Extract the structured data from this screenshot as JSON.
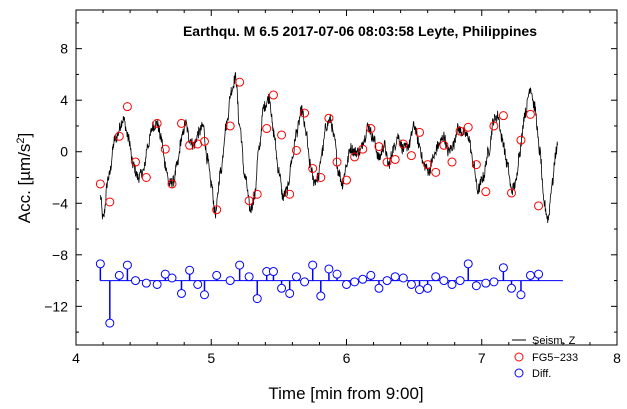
{
  "chart_data": {
    "type": "line",
    "title": "Earthqu. M 6.5 2017-07-06 08:03:58 Leyte, Philippines",
    "xlabel": "Time [min from 9:00]",
    "ylabel_main": "Acc. [µm/s",
    "ylabel_sup": "2",
    "ylabel_tail": "]",
    "xlim": [
      4,
      8
    ],
    "ylim": [
      -15,
      11
    ],
    "x_ticks": [
      "4",
      "5",
      "6",
      "7",
      "8"
    ],
    "y_ticks": [
      "8",
      "4",
      "0",
      "−4",
      "−8",
      "−12"
    ],
    "y_tick_values": [
      8,
      4,
      0,
      -4,
      -8,
      -12
    ],
    "x_tick_values": [
      4,
      5,
      6,
      7,
      8
    ],
    "grid": false,
    "legend_position": "bottom-right",
    "legend": [
      "Seism. Z",
      "FG5−233",
      "Diff."
    ],
    "colors": {
      "seism": "#000000",
      "fg5": "#ff0000",
      "diff": "#0000ff",
      "baseline": "#0000ff"
    },
    "diff_baseline": -10,
    "seism_keypoints": [
      [
        4.18,
        -3.5
      ],
      [
        4.2,
        -5.2
      ],
      [
        4.24,
        -2.0
      ],
      [
        4.29,
        1.0
      ],
      [
        4.35,
        2.5
      ],
      [
        4.39,
        1.0
      ],
      [
        4.42,
        -1.0
      ],
      [
        4.46,
        -2.0
      ],
      [
        4.5,
        -1.5
      ],
      [
        4.53,
        0.5
      ],
      [
        4.57,
        2.0
      ],
      [
        4.6,
        2.2
      ],
      [
        4.63,
        1.0
      ],
      [
        4.66,
        -1.0
      ],
      [
        4.69,
        -2.5
      ],
      [
        4.72,
        -2.3
      ],
      [
        4.75,
        -1.0
      ],
      [
        4.78,
        1.0
      ],
      [
        4.81,
        2.2
      ],
      [
        4.84,
        1.0
      ],
      [
        4.87,
        0.5
      ],
      [
        4.91,
        1.5
      ],
      [
        4.94,
        2.0
      ],
      [
        4.97,
        -0.5
      ],
      [
        5.0,
        -2.5
      ],
      [
        5.03,
        -4.8
      ],
      [
        5.07,
        -1.5
      ],
      [
        5.11,
        2.0
      ],
      [
        5.15,
        4.8
      ],
      [
        5.18,
        5.8
      ],
      [
        5.21,
        2.0
      ],
      [
        5.25,
        -2.0
      ],
      [
        5.29,
        -4.5
      ],
      [
        5.32,
        -3.5
      ],
      [
        5.35,
        0.0
      ],
      [
        5.39,
        3.5
      ],
      [
        5.43,
        4.2
      ],
      [
        5.46,
        1.5
      ],
      [
        5.5,
        -1.5
      ],
      [
        5.53,
        -3.5
      ],
      [
        5.56,
        -3.0
      ],
      [
        5.6,
        -0.5
      ],
      [
        5.63,
        1.5
      ],
      [
        5.67,
        3.2
      ],
      [
        5.7,
        1.5
      ],
      [
        5.73,
        -1.0
      ],
      [
        5.76,
        -2.3
      ],
      [
        5.79,
        -2.0
      ],
      [
        5.82,
        0.0
      ],
      [
        5.85,
        2.0
      ],
      [
        5.88,
        2.5
      ],
      [
        5.91,
        1.0
      ],
      [
        5.94,
        -1.5
      ],
      [
        5.97,
        -2.5
      ],
      [
        6.0,
        -1.0
      ],
      [
        6.03,
        0.3
      ],
      [
        6.06,
        0.0
      ],
      [
        6.1,
        0.0
      ],
      [
        6.13,
        1.0
      ],
      [
        6.16,
        2.0
      ],
      [
        6.2,
        1.0
      ],
      [
        6.24,
        -0.5
      ],
      [
        6.28,
        0.5
      ],
      [
        6.31,
        -1.0
      ],
      [
        6.35,
        0.3
      ],
      [
        6.38,
        1.2
      ],
      [
        6.42,
        0.2
      ],
      [
        6.46,
        0.5
      ],
      [
        6.5,
        2.0
      ],
      [
        6.54,
        0.5
      ],
      [
        6.57,
        -1.0
      ],
      [
        6.61,
        -1.5
      ],
      [
        6.64,
        -0.5
      ],
      [
        6.68,
        0.5
      ],
      [
        6.72,
        1.2
      ],
      [
        6.75,
        0.0
      ],
      [
        6.79,
        0.5
      ],
      [
        6.82,
        1.8
      ],
      [
        6.86,
        1.5
      ],
      [
        6.9,
        1.2
      ],
      [
        6.94,
        -1.0
      ],
      [
        6.97,
        -3.0
      ],
      [
        7.01,
        -2.0
      ],
      [
        7.05,
        0.0
      ],
      [
        7.09,
        2.5
      ],
      [
        7.12,
        2.8
      ],
      [
        7.15,
        1.0
      ],
      [
        7.19,
        -1.0
      ],
      [
        7.22,
        -3.0
      ],
      [
        7.25,
        -2.5
      ],
      [
        7.28,
        0.0
      ],
      [
        7.32,
        3.0
      ],
      [
        7.36,
        5.0
      ],
      [
        7.39,
        3.5
      ],
      [
        7.43,
        0.0
      ],
      [
        7.46,
        -4.0
      ],
      [
        7.49,
        -5.2
      ],
      [
        7.52,
        -2.5
      ],
      [
        7.55,
        0.0
      ],
      [
        7.56,
        0.5
      ]
    ],
    "fg5_points": [
      [
        4.18,
        -2.5
      ],
      [
        4.25,
        -3.9
      ],
      [
        4.32,
        1.2
      ],
      [
        4.38,
        3.5
      ],
      [
        4.44,
        -0.8
      ],
      [
        4.52,
        -2.0
      ],
      [
        4.6,
        2.2
      ],
      [
        4.66,
        0.2
      ],
      [
        4.71,
        -2.5
      ],
      [
        4.78,
        2.2
      ],
      [
        4.84,
        0.5
      ],
      [
        4.9,
        0.6
      ],
      [
        4.95,
        0.8
      ],
      [
        5.04,
        -4.5
      ],
      [
        5.14,
        2.0
      ],
      [
        5.21,
        5.4
      ],
      [
        5.28,
        -3.8
      ],
      [
        5.34,
        -3.3
      ],
      [
        5.41,
        1.8
      ],
      [
        5.46,
        4.4
      ],
      [
        5.52,
        1.3
      ],
      [
        5.58,
        -3.3
      ],
      [
        5.63,
        0.1
      ],
      [
        5.69,
        3.0
      ],
      [
        5.75,
        -1.3
      ],
      [
        5.81,
        -2.0
      ],
      [
        5.87,
        2.6
      ],
      [
        5.93,
        -0.8
      ],
      [
        6.0,
        -2.2
      ],
      [
        6.06,
        -0.4
      ],
      [
        6.12,
        0.2
      ],
      [
        6.18,
        1.8
      ],
      [
        6.24,
        0.4
      ],
      [
        6.3,
        -0.8
      ],
      [
        6.36,
        -0.6
      ],
      [
        6.42,
        0.6
      ],
      [
        6.48,
        -0.3
      ],
      [
        6.54,
        1.5
      ],
      [
        6.6,
        -1.0
      ],
      [
        6.66,
        -1.6
      ],
      [
        6.72,
        0.5
      ],
      [
        6.78,
        -0.8
      ],
      [
        6.84,
        1.6
      ],
      [
        6.9,
        1.9
      ],
      [
        6.96,
        -1.0
      ],
      [
        7.03,
        -3.1
      ],
      [
        7.09,
        2.0
      ],
      [
        7.16,
        2.8
      ],
      [
        7.22,
        -3.2
      ],
      [
        7.29,
        0.9
      ],
      [
        7.36,
        2.9
      ],
      [
        7.42,
        -4.2
      ]
    ],
    "diff_points": [
      [
        4.18,
        -8.7
      ],
      [
        4.25,
        -13.3
      ],
      [
        4.32,
        -9.6
      ],
      [
        4.38,
        -8.8
      ],
      [
        4.44,
        -10.0
      ],
      [
        4.52,
        -10.2
      ],
      [
        4.6,
        -10.3
      ],
      [
        4.66,
        -9.5
      ],
      [
        4.71,
        -9.8
      ],
      [
        4.78,
        -11.0
      ],
      [
        4.84,
        -9.2
      ],
      [
        4.9,
        -10.3
      ],
      [
        4.95,
        -11.1
      ],
      [
        5.04,
        -9.6
      ],
      [
        5.14,
        -10.0
      ],
      [
        5.21,
        -8.8
      ],
      [
        5.28,
        -9.7
      ],
      [
        5.34,
        -11.4
      ],
      [
        5.41,
        -9.3
      ],
      [
        5.46,
        -9.3
      ],
      [
        5.52,
        -10.6
      ],
      [
        5.58,
        -11.0
      ],
      [
        5.63,
        -9.7
      ],
      [
        5.69,
        -10.1
      ],
      [
        5.75,
        -8.8
      ],
      [
        5.81,
        -11.2
      ],
      [
        5.87,
        -9.1
      ],
      [
        5.93,
        -9.5
      ],
      [
        6.0,
        -10.3
      ],
      [
        6.06,
        -10.1
      ],
      [
        6.12,
        -9.9
      ],
      [
        6.18,
        -9.6
      ],
      [
        6.24,
        -10.6
      ],
      [
        6.3,
        -10.0
      ],
      [
        6.36,
        -9.7
      ],
      [
        6.42,
        -9.8
      ],
      [
        6.48,
        -10.3
      ],
      [
        6.54,
        -10.7
      ],
      [
        6.6,
        -10.6
      ],
      [
        6.66,
        -9.7
      ],
      [
        6.72,
        -10.0
      ],
      [
        6.78,
        -10.3
      ],
      [
        6.84,
        -10.0
      ],
      [
        6.9,
        -8.7
      ],
      [
        6.96,
        -10.4
      ],
      [
        7.03,
        -10.2
      ],
      [
        7.09,
        -10.1
      ],
      [
        7.16,
        -9.0
      ],
      [
        7.22,
        -10.6
      ],
      [
        7.29,
        -11.1
      ],
      [
        7.36,
        -9.6
      ],
      [
        7.42,
        -9.5
      ]
    ],
    "baseline_range": [
      4.18,
      7.6
    ]
  }
}
